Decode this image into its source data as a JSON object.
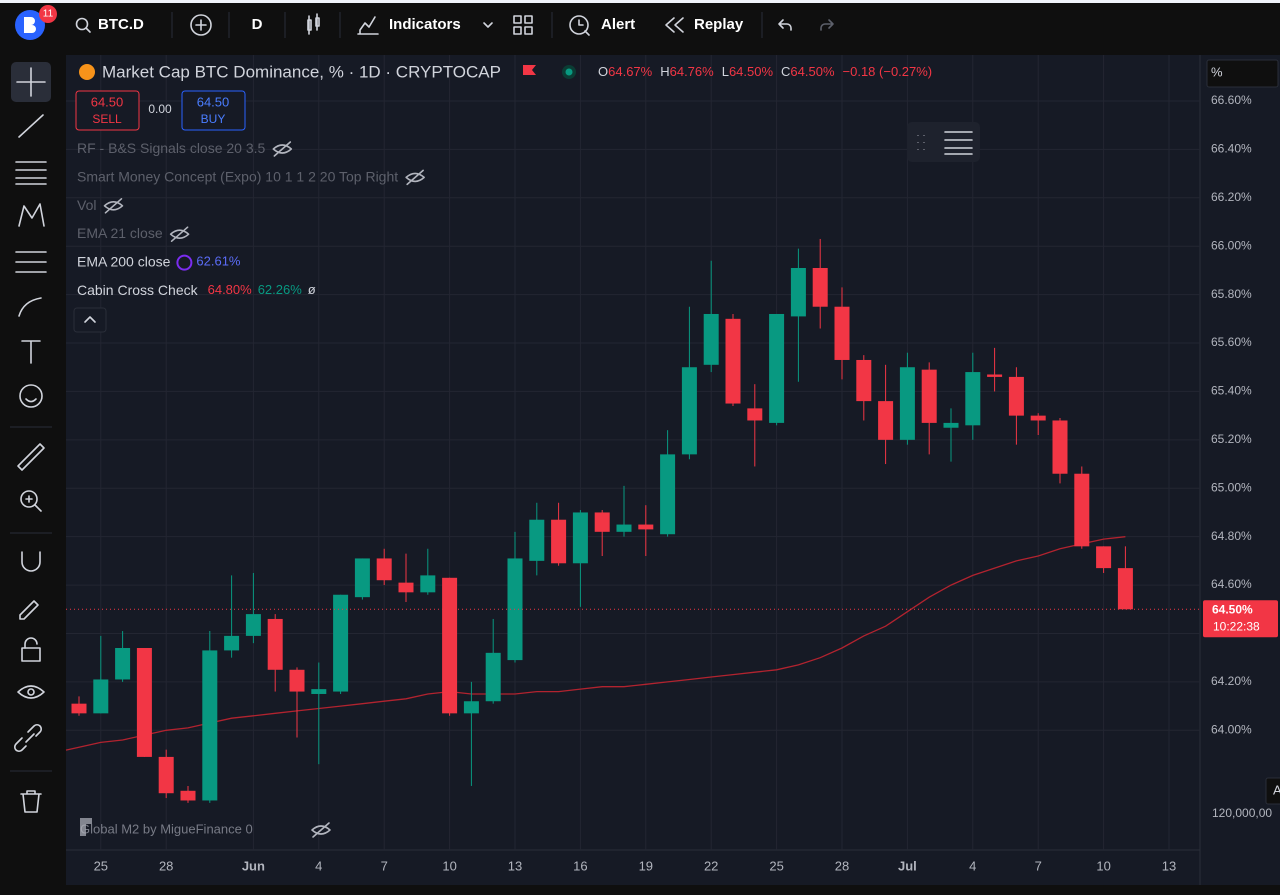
{
  "toolbar": {
    "badge": "11",
    "symbol": "BTC.D",
    "interval": "D",
    "indicators": "Indicators",
    "alert": "Alert",
    "replay": "Replay"
  },
  "legend": {
    "title": "Market Cap BTC Dominance, % · 1D · CRYPTOCAP",
    "ohlc": [
      [
        "O",
        "64.67%"
      ],
      [
        "H",
        "64.76%"
      ],
      [
        "L",
        "64.50%"
      ],
      [
        "C",
        "64.50%"
      ]
    ],
    "change": "−0.18 (−0.27%)"
  },
  "trade": {
    "sell_price": "64.50",
    "sell": "SELL",
    "spread": "0.00",
    "buy_price": "64.50",
    "buy": "BUY"
  },
  "indicators": [
    {
      "name": "RF - B&S Signals close 20 3.5"
    },
    {
      "name": "Smart Money Concept (Expo) 10 1 1 2 20 Top Right"
    },
    {
      "name": "Vol"
    },
    {
      "name": "EMA 21 close"
    },
    {
      "name": "EMA 200 close",
      "values": [
        "62.61%"
      ]
    },
    {
      "values": [
        "64.80%",
        "62.26%",
        "ø"
      ]
    }
  ],
  "bottom_indicator": "Global M2 by MigueFinance 0",
  "price_axis": {
    "unit": "%",
    "extra_label": "120,000,00",
    "corner_label": "A"
  },
  "chart_data": {
    "type": "candlestick",
    "categories": [
      null,
      "25",
      null,
      null,
      "28",
      null,
      null,
      null,
      "Jun",
      null,
      null,
      "4",
      null,
      null,
      "7",
      null,
      null,
      "10",
      null,
      null,
      "13",
      null,
      null,
      "16",
      null,
      null,
      "19",
      null,
      null,
      "22",
      null,
      null,
      "25",
      null,
      null,
      "28",
      null,
      null,
      "Jul",
      null,
      null,
      "4",
      null,
      null,
      "7",
      null,
      null,
      "10",
      null,
      null,
      "13"
    ],
    "open": [
      64.11,
      64.07,
      64.21,
      64.34,
      63.89,
      63.75,
      63.71,
      64.33,
      64.39,
      64.46,
      64.25,
      64.15,
      64.16,
      64.55,
      64.71,
      64.61,
      64.57,
      64.63,
      64.07,
      64.12,
      64.29,
      64.7,
      64.87,
      64.69,
      64.9,
      64.82,
      64.85,
      64.81,
      65.14,
      65.51,
      65.7,
      65.33,
      65.27,
      65.71,
      65.91,
      65.75,
      65.53,
      65.36,
      65.2,
      65.49,
      65.25,
      65.26,
      65.47,
      65.46,
      65.3,
      65.28,
      65.06,
      64.76,
      64.67,
      null,
      null
    ],
    "high": [
      64.14,
      64.39,
      64.41,
      64.34,
      63.92,
      63.77,
      64.41,
      64.64,
      64.65,
      64.48,
      64.26,
      64.28,
      64.56,
      64.71,
      64.75,
      64.73,
      64.75,
      64.63,
      64.2,
      64.46,
      64.82,
      64.94,
      64.94,
      64.91,
      64.91,
      65.01,
      64.93,
      65.24,
      65.75,
      65.94,
      65.72,
      65.43,
      65.72,
      65.99,
      66.03,
      65.83,
      65.55,
      65.51,
      65.56,
      65.52,
      65.33,
      65.56,
      65.58,
      65.5,
      65.31,
      65.29,
      65.09,
      64.76,
      64.76,
      null,
      null
    ],
    "low": [
      64.06,
      64.07,
      64.2,
      63.89,
      63.72,
      63.7,
      63.7,
      64.3,
      64.36,
      64.16,
      63.97,
      63.86,
      64.15,
      64.54,
      64.6,
      64.53,
      64.56,
      64.06,
      63.77,
      64.11,
      64.28,
      64.64,
      64.68,
      64.51,
      64.72,
      64.8,
      64.72,
      64.8,
      65.12,
      65.48,
      65.34,
      65.09,
      65.26,
      65.44,
      65.66,
      65.45,
      65.28,
      65.1,
      65.18,
      65.14,
      65.11,
      65.2,
      65.4,
      65.18,
      65.22,
      65.02,
      64.75,
      64.65,
      64.5,
      null,
      null
    ],
    "close": [
      64.07,
      64.21,
      64.34,
      63.89,
      63.74,
      63.71,
      64.33,
      64.39,
      64.48,
      64.25,
      64.16,
      64.17,
      64.56,
      64.71,
      64.62,
      64.57,
      64.64,
      64.07,
      64.12,
      64.32,
      64.71,
      64.87,
      64.69,
      64.9,
      64.82,
      64.85,
      64.83,
      65.14,
      65.5,
      65.72,
      65.35,
      65.28,
      65.72,
      65.91,
      65.75,
      65.53,
      65.36,
      65.2,
      65.5,
      65.27,
      65.27,
      65.48,
      65.46,
      65.3,
      65.28,
      65.06,
      64.76,
      64.67,
      64.5,
      null,
      null
    ],
    "up_color": "#089981",
    "down_color": "#f23645",
    "series": [
      {
        "name": "Cabin Cross Check",
        "color": "#b2232f",
        "values": [
          63.93,
          63.95,
          63.96,
          63.98,
          64.0,
          64.01,
          64.03,
          64.05,
          64.06,
          64.07,
          64.08,
          64.09,
          64.1,
          64.11,
          64.12,
          64.13,
          64.15,
          64.16,
          64.15,
          64.15,
          64.15,
          64.16,
          64.16,
          64.17,
          64.18,
          64.18,
          64.19,
          64.2,
          64.21,
          64.22,
          64.23,
          64.24,
          64.25,
          64.27,
          64.3,
          64.34,
          64.39,
          64.43,
          64.49,
          64.55,
          64.6,
          64.64,
          64.67,
          64.7,
          64.72,
          64.75,
          64.77,
          64.79,
          64.8,
          null,
          null
        ]
      }
    ],
    "ylim": [
      63.65,
      66.79
    ],
    "yticks": [
      {
        "value": 64.0,
        "label": "64.00%"
      },
      {
        "value": 64.2,
        "label": "64.20%"
      },
      {
        "value": 64.4,
        "label": "64.40%"
      },
      {
        "value": 64.6,
        "label": "64.60%"
      },
      {
        "value": 64.8,
        "label": "64.80%"
      },
      {
        "value": 65.0,
        "label": "65.00%"
      },
      {
        "value": 65.2,
        "label": "65.20%"
      },
      {
        "value": 65.4,
        "label": "65.40%"
      },
      {
        "value": 65.6,
        "label": "65.60%"
      },
      {
        "value": 65.8,
        "label": "65.80%"
      },
      {
        "value": 66.0,
        "label": "66.00%"
      },
      {
        "value": 66.2,
        "label": "66.20%"
      },
      {
        "value": 66.4,
        "label": "66.40%"
      },
      {
        "value": 66.6,
        "label": "66.60%"
      }
    ],
    "grid": true,
    "last_price": {
      "value": 64.5,
      "label": "64.50%"
    },
    "countdown": "10:22:38"
  }
}
